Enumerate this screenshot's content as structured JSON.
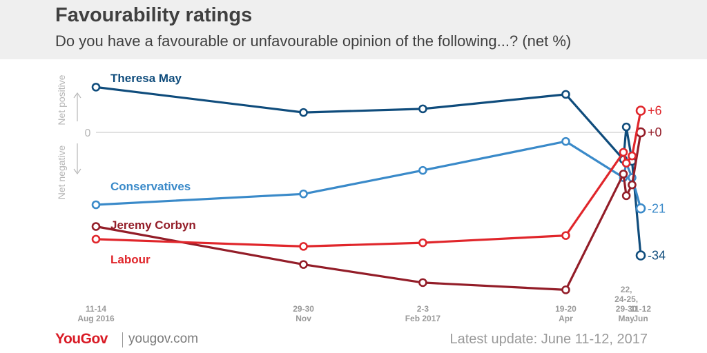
{
  "header": {
    "title": "Favourability ratings",
    "subtitle": "Do you have a favourable or unfavourable opinion of the following...? (net %)"
  },
  "footer": {
    "logo": "YouGov",
    "site": "yougov.com",
    "update": "Latest update: June 11-12, 2017"
  },
  "chart_data": {
    "type": "line",
    "title": "Favourability ratings",
    "subtitle": "Do you have a favourable or unfavourable opinion of the following...? (net %)",
    "ylabel_positive": "Net positive",
    "ylabel_negative": "Net negative",
    "zero_label": "0",
    "ylim": [
      -40,
      13
    ],
    "x_ticks": [
      {
        "lines": [
          "11-14",
          "Aug 2016"
        ]
      },
      {
        "lines": [
          "29-30",
          "Nov"
        ]
      },
      {
        "lines": [
          "2-3",
          "Feb 2017"
        ]
      },
      {
        "lines": [
          "19-20",
          "Apr"
        ]
      },
      {
        "lines": [
          "22,",
          "24-25,",
          "29-30",
          "May"
        ]
      },
      {
        "lines": [
          "11-12",
          "Jun"
        ]
      }
    ],
    "x": [
      0,
      3.6,
      5.67,
      8.15,
      9.15,
      9.2,
      9.3,
      9.45
    ],
    "x_tick_positions": [
      0,
      3.6,
      5.67,
      8.15,
      9.2,
      9.45
    ],
    "series": [
      {
        "name": "Theresa May",
        "color": "#0f4c7c",
        "values": [
          12.5,
          5.5,
          6.5,
          10.5,
          -7.5,
          1.5,
          -8.0,
          -34.0
        ],
        "end_label": "-34"
      },
      {
        "name": "Conservatives",
        "color": "#3a8ac9",
        "values": [
          -20.0,
          -17.0,
          -10.5,
          -2.5,
          -12.5,
          -8.5,
          -12.5,
          -21.0
        ],
        "end_label": "-21"
      },
      {
        "name": "Jeremy Corbyn",
        "color": "#931d28",
        "values": [
          -26.0,
          -36.5,
          -41.5,
          -43.5,
          -11.5,
          -17.5,
          -14.5,
          0.0
        ],
        "end_label": "+0"
      },
      {
        "name": "Labour",
        "color": "#e0262b",
        "values": [
          -29.5,
          -31.5,
          -30.5,
          -28.5,
          -5.5,
          -8.5,
          -6.5,
          6.0
        ],
        "end_label": "+6"
      }
    ]
  }
}
